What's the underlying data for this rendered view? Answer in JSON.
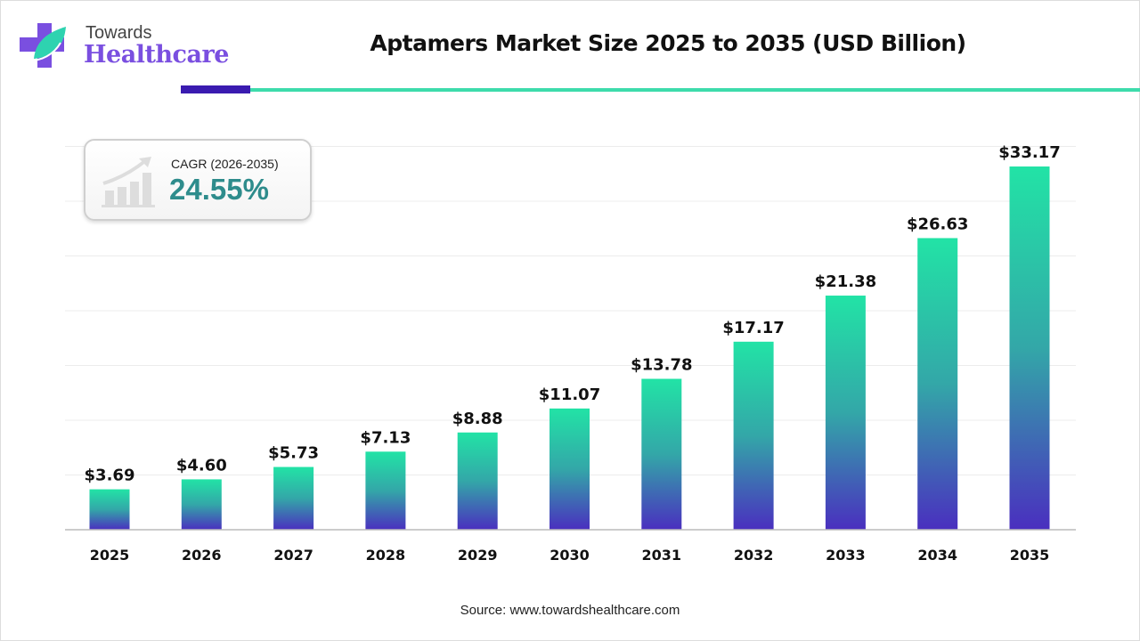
{
  "logo": {
    "line1": "Towards",
    "line2": "Healthcare"
  },
  "cagr": {
    "label": "CAGR (2026-2035)",
    "value": "24.55%"
  },
  "source": "Source: www.towardshealthcare.com",
  "colors": {
    "bar_top": "#22e3a6",
    "bar_bottom": "#4a2fbf",
    "accent_dark": "#3a1bb0",
    "accent_teal": "#3ddbab",
    "cagr_value": "#2e8c8c"
  },
  "chart_data": {
    "type": "bar",
    "title": "Aptamers Market Size 2025 to 2035 (USD Billion)",
    "xlabel": "",
    "ylabel": "",
    "categories": [
      "2025",
      "2026",
      "2027",
      "2028",
      "2029",
      "2030",
      "2031",
      "2032",
      "2033",
      "2034",
      "2035"
    ],
    "values": [
      3.69,
      4.6,
      5.73,
      7.13,
      8.88,
      11.07,
      13.78,
      17.17,
      21.38,
      26.63,
      33.17
    ],
    "data_labels": [
      "$3.69",
      "$4.60",
      "$5.73",
      "$7.13",
      "$8.88",
      "$11.07",
      "$13.78",
      "$17.17",
      "$21.38",
      "$26.63",
      "$33.17"
    ],
    "ylim": [
      0,
      35
    ],
    "grid": true,
    "y_axis_visible": false
  }
}
